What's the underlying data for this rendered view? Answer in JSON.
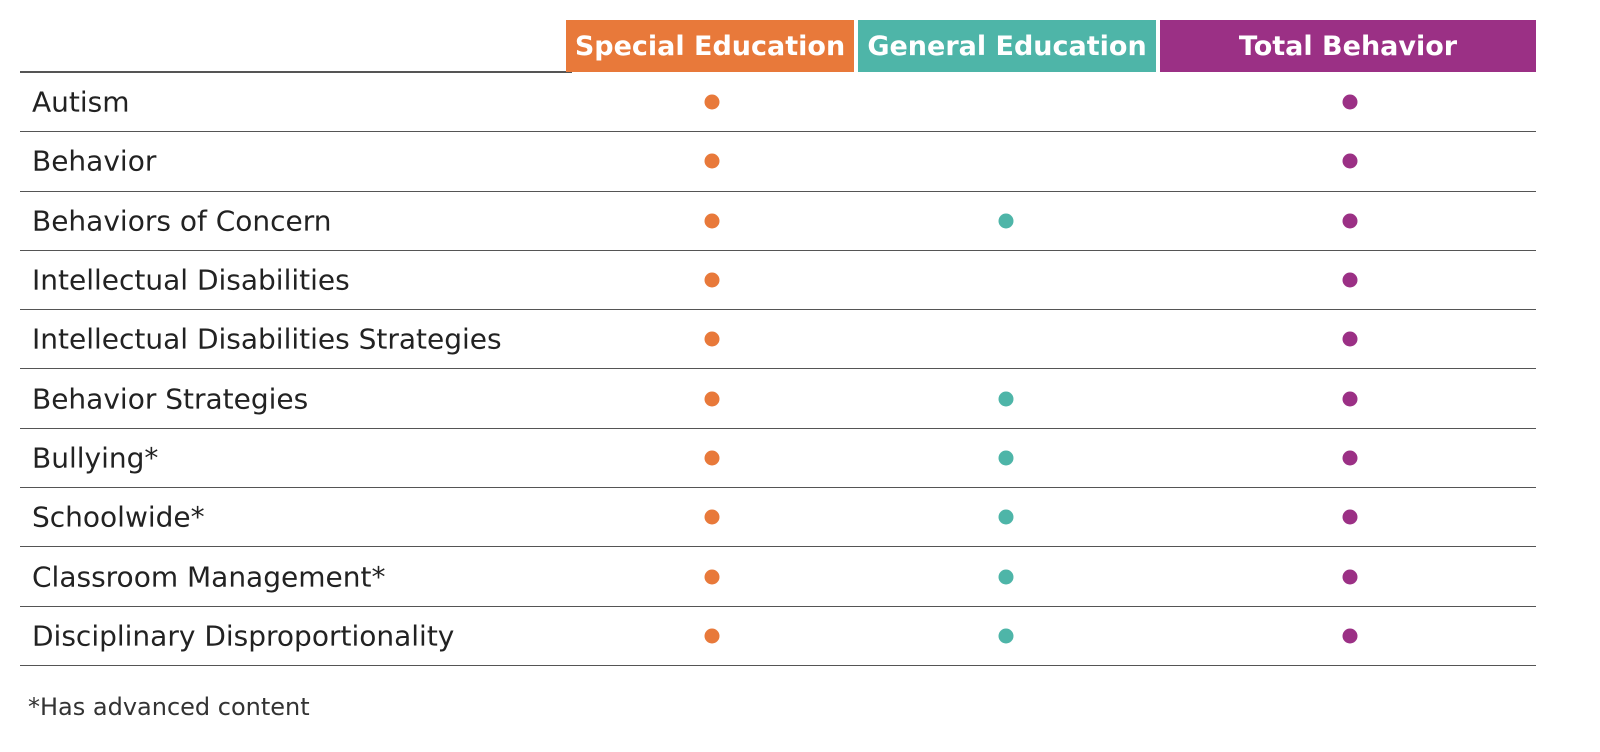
{
  "colors": {
    "special": "#E8793A",
    "general": "#4EB5A8",
    "total": "#9B3085"
  },
  "columns": [
    {
      "key": "special",
      "label": "Special Education"
    },
    {
      "key": "general",
      "label": "General Education"
    },
    {
      "key": "total",
      "label": "Total Behavior"
    }
  ],
  "rows": [
    {
      "label": "Autism",
      "special": true,
      "general": false,
      "total": true
    },
    {
      "label": "Behavior",
      "special": true,
      "general": false,
      "total": true
    },
    {
      "label": "Behaviors of Concern",
      "special": true,
      "general": true,
      "total": true
    },
    {
      "label": "Intellectual Disabilities",
      "special": true,
      "general": false,
      "total": true
    },
    {
      "label": "Intellectual Disabilities Strategies",
      "special": true,
      "general": false,
      "total": true
    },
    {
      "label": "Behavior Strategies",
      "special": true,
      "general": true,
      "total": true
    },
    {
      "label": "Bullying*",
      "special": true,
      "general": true,
      "total": true
    },
    {
      "label": "Schoolwide*",
      "special": true,
      "general": true,
      "total": true
    },
    {
      "label": "Classroom Management*",
      "special": true,
      "general": true,
      "total": true
    },
    {
      "label": "Disciplinary Disproportionality",
      "special": true,
      "general": true,
      "total": true
    }
  ],
  "footnote": "*Has advanced content"
}
